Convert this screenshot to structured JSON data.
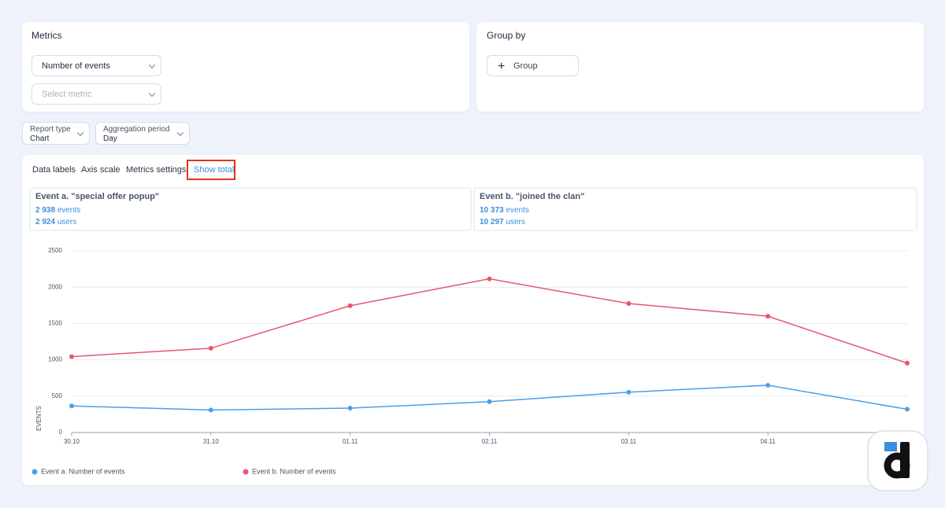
{
  "metrics_panel": {
    "title": "Metrics",
    "metric_select": "Number of events",
    "metric_placeholder": "Select metric"
  },
  "group_panel": {
    "title": "Group by",
    "button": "Group"
  },
  "filters": [
    {
      "label": "Report type",
      "value": "Chart"
    },
    {
      "label": "Aggregation period",
      "value": "Day"
    }
  ],
  "toolbar": [
    "Data labels",
    "Axis scale",
    "Metrics settings",
    "Show total"
  ],
  "totals": [
    {
      "event": "Event a. \"special offer popup\"",
      "events_count": "2 938",
      "events_unit": "events",
      "users_count": "2 924",
      "users_unit": "users"
    },
    {
      "event": "Event b. \"joined the clan\"",
      "events_count": "10 373",
      "events_unit": "events",
      "users_count": "10 297",
      "users_unit": "users"
    }
  ],
  "chart_data": {
    "type": "line",
    "y_label": "EVENTS",
    "categories": [
      "30.10",
      "31.10",
      "01.11",
      "02.11",
      "03.11",
      "04.11",
      null
    ],
    "series": [
      {
        "name": "Event a. Number of events",
        "color": "#4a9fe8",
        "values": [
          365,
          310,
          335,
          425,
          555,
          650,
          320
        ]
      },
      {
        "name": "Event b. Number of events",
        "color": "#e8566c",
        "values": [
          1045,
          1160,
          1745,
          2115,
          1775,
          1600,
          955
        ]
      }
    ],
    "ylim": [
      0,
      2500
    ],
    "yticks": [
      0,
      500,
      1000,
      1500,
      2000,
      2500
    ],
    "grid": true
  }
}
